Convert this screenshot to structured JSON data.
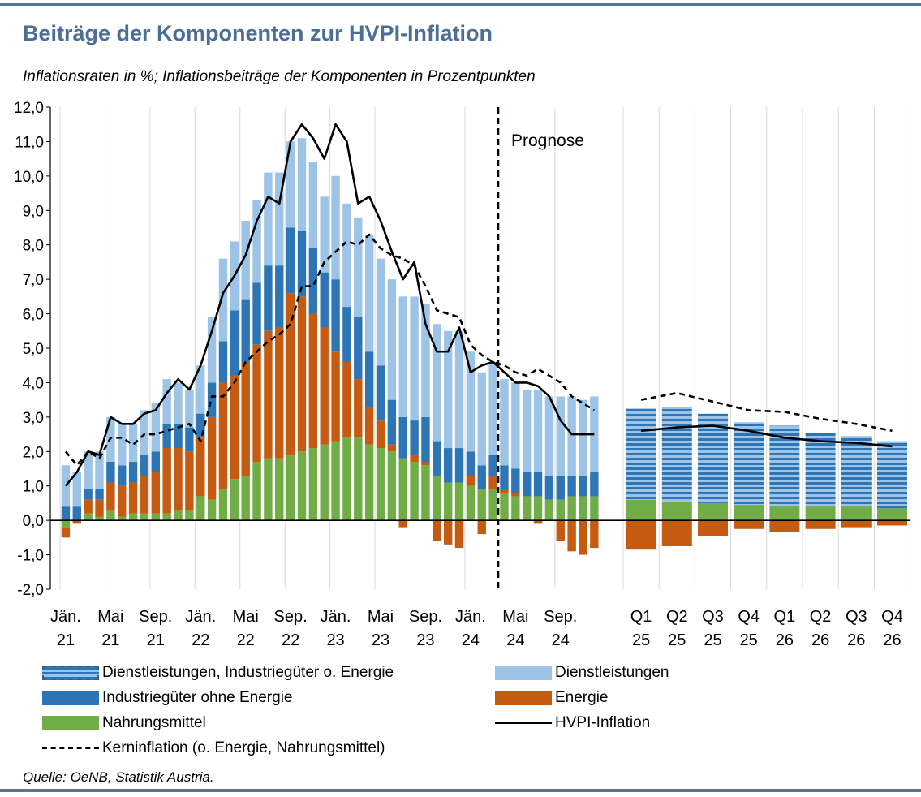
{
  "title": "Beiträge der Komponenten zur HVPI-Inflation",
  "subtitle": "Inflationsraten in %; Inflationsbeiträge der Komponenten in Prozentpunkten",
  "source": "Quelle: OeNB, Statistik Austria.",
  "colors": {
    "services": "#9dc3e6",
    "industrial": "#2e75b6",
    "energy": "#c55a11",
    "food": "#70ad47",
    "combined_stripe_light": "#9dc3e6",
    "combined_stripe_dark": "#2e75b6",
    "hvpi": "#000000",
    "core": "#000000",
    "rule": "#5b7596",
    "title": "#4d6e96"
  },
  "chart_data": {
    "type": "bar",
    "stacked": true,
    "ylim": [
      -2.0,
      12.0
    ],
    "y_ticks": [
      "12,0",
      "11,0",
      "10,0",
      "9,0",
      "8,0",
      "7,0",
      "6,0",
      "5,0",
      "4,0",
      "3,0",
      "2,0",
      "1,0",
      "0,0",
      "-1,0",
      "-2,0"
    ],
    "grid": "vertical",
    "annotation": "Prognose",
    "monthly": {
      "categories": [
        "2021-01",
        "2021-02",
        "2021-03",
        "2021-04",
        "2021-05",
        "2021-06",
        "2021-07",
        "2021-08",
        "2021-09",
        "2021-10",
        "2021-11",
        "2021-12",
        "2022-01",
        "2022-02",
        "2022-03",
        "2022-04",
        "2022-05",
        "2022-06",
        "2022-07",
        "2022-08",
        "2022-09",
        "2022-10",
        "2022-11",
        "2022-12",
        "2023-01",
        "2023-02",
        "2023-03",
        "2023-04",
        "2023-05",
        "2023-06",
        "2023-07",
        "2023-08",
        "2023-09",
        "2023-10",
        "2023-11",
        "2023-12",
        "2024-01",
        "2024-02",
        "2024-03",
        "2024-04",
        "2024-05",
        "2024-06",
        "2024-07",
        "2024-08",
        "2024-09",
        "2024-10",
        "2024-11",
        "2024-12"
      ],
      "tick_labels": [
        {
          "line1": "Jän.",
          "line2": "21"
        },
        {
          "line1": "Mai",
          "line2": "21"
        },
        {
          "line1": "Sep.",
          "line2": "21"
        },
        {
          "line1": "Jän.",
          "line2": "22"
        },
        {
          "line1": "Mai",
          "line2": "22"
        },
        {
          "line1": "Sep.",
          "line2": "22"
        },
        {
          "line1": "Jän.",
          "line2": "23"
        },
        {
          "line1": "Mai",
          "line2": "23"
        },
        {
          "line1": "Sep.",
          "line2": "23"
        },
        {
          "line1": "Jän.",
          "line2": "24"
        },
        {
          "line1": "Mai",
          "line2": "24"
        },
        {
          "line1": "Sep.",
          "line2": "24"
        }
      ],
      "series": [
        {
          "name": "Nahrungsmittel",
          "values": [
            -0.2,
            0.0,
            0.2,
            0.1,
            0.3,
            0.1,
            0.2,
            0.2,
            0.2,
            0.2,
            0.3,
            0.3,
            0.7,
            0.6,
            0.9,
            1.2,
            1.3,
            1.7,
            1.8,
            1.8,
            1.9,
            2.0,
            2.1,
            2.2,
            2.3,
            2.4,
            2.4,
            2.2,
            2.1,
            2.0,
            1.8,
            1.7,
            1.6,
            1.3,
            1.1,
            1.1,
            1.0,
            0.9,
            0.9,
            0.8,
            0.7,
            0.7,
            0.7,
            0.6,
            0.6,
            0.7,
            0.7,
            0.7
          ]
        },
        {
          "name": "Energie",
          "values": [
            -0.3,
            -0.1,
            0.4,
            0.5,
            0.8,
            0.9,
            0.9,
            1.1,
            1.2,
            1.9,
            1.8,
            1.7,
            1.7,
            2.4,
            3.1,
            3.0,
            3.3,
            3.4,
            3.7,
            3.8,
            4.7,
            4.5,
            3.9,
            3.4,
            2.6,
            2.2,
            1.7,
            1.1,
            0.8,
            0.2,
            -0.2,
            0.2,
            0.1,
            -0.6,
            -0.7,
            -0.8,
            0.3,
            -0.4,
            0.4,
            0.1,
            0.1,
            0.0,
            -0.1,
            0.0,
            -0.6,
            -0.9,
            -1.0,
            -0.8
          ]
        },
        {
          "name": "Industriegüter ohne Energie",
          "values": [
            0.4,
            0.4,
            0.3,
            0.3,
            0.6,
            0.6,
            0.6,
            0.6,
            0.6,
            0.7,
            0.7,
            0.7,
            0.7,
            1.0,
            1.2,
            1.9,
            1.8,
            1.8,
            1.9,
            1.8,
            1.9,
            1.9,
            1.9,
            1.6,
            2.1,
            1.6,
            1.8,
            1.6,
            1.6,
            1.3,
            1.2,
            1.0,
            1.3,
            1.0,
            1.0,
            1.0,
            0.7,
            0.7,
            0.6,
            0.7,
            0.7,
            0.7,
            0.7,
            0.7,
            0.7,
            0.6,
            0.6,
            0.7
          ]
        },
        {
          "name": "Dienstleistungen",
          "values": [
            1.2,
            1.0,
            1.1,
            1.1,
            1.3,
            1.2,
            1.1,
            1.3,
            1.4,
            1.3,
            1.2,
            1.1,
            1.4,
            1.9,
            2.4,
            2.0,
            2.3,
            2.4,
            2.7,
            2.7,
            2.5,
            2.7,
            2.5,
            2.2,
            3.0,
            3.0,
            2.9,
            3.4,
            3.1,
            3.5,
            3.5,
            3.6,
            3.3,
            3.4,
            3.4,
            3.4,
            2.9,
            2.7,
            2.7,
            2.5,
            2.5,
            2.4,
            2.4,
            2.3,
            2.3,
            2.3,
            2.2,
            2.2
          ]
        },
        {
          "name": "HVPI-Inflation",
          "type": "line",
          "values": [
            1.0,
            1.4,
            2.0,
            1.9,
            3.0,
            2.8,
            2.8,
            3.1,
            3.2,
            3.7,
            4.1,
            3.8,
            4.5,
            5.5,
            6.6,
            7.1,
            7.7,
            8.7,
            9.4,
            9.2,
            11.0,
            11.5,
            11.1,
            10.5,
            11.5,
            11.0,
            9.2,
            9.4,
            8.7,
            7.8,
            7.0,
            7.5,
            5.7,
            4.9,
            4.9,
            5.6,
            4.3,
            4.5,
            4.6,
            4.3,
            4.0,
            4.0,
            3.9,
            3.6,
            2.9,
            2.5,
            2.5,
            2.5
          ]
        },
        {
          "name": "Kerninflation (o. Energie, Nahrungsmittel)",
          "type": "line",
          "values": [
            2.0,
            1.6,
            2.0,
            1.8,
            2.4,
            2.4,
            2.2,
            2.5,
            2.5,
            2.6,
            2.7,
            2.8,
            2.3,
            3.6,
            3.6,
            4.0,
            4.6,
            4.9,
            5.2,
            5.4,
            5.7,
            6.8,
            6.8,
            7.5,
            7.8,
            8.1,
            8.0,
            8.3,
            7.9,
            7.7,
            7.6,
            7.4,
            6.8,
            6.1,
            6.0,
            5.9,
            5.1,
            4.8,
            4.6,
            4.5,
            4.3,
            4.2,
            4.4,
            4.2,
            4.0,
            3.6,
            3.4,
            3.2
          ]
        }
      ]
    },
    "forecast": {
      "categories": [
        {
          "line1": "Q1",
          "line2": "25"
        },
        {
          "line1": "Q2",
          "line2": "25"
        },
        {
          "line1": "Q3",
          "line2": "25"
        },
        {
          "line1": "Q4",
          "line2": "25"
        },
        {
          "line1": "Q1",
          "line2": "26"
        },
        {
          "line1": "Q2",
          "line2": "26"
        },
        {
          "line1": "Q3",
          "line2": "26"
        },
        {
          "line1": "Q4",
          "line2": "26"
        }
      ],
      "series": [
        {
          "name": "Nahrungsmittel",
          "values": [
            0.6,
            0.55,
            0.5,
            0.45,
            0.4,
            0.4,
            0.4,
            0.35
          ]
        },
        {
          "name": "Energie",
          "values": [
            -0.85,
            -0.75,
            -0.45,
            -0.25,
            -0.35,
            -0.25,
            -0.2,
            -0.15
          ]
        },
        {
          "name": "Dienstleistungen, Industriegüter o. Energie",
          "values": [
            2.65,
            2.75,
            2.6,
            2.4,
            2.35,
            2.15,
            2.05,
            1.95
          ]
        },
        {
          "name": "HVPI-Inflation",
          "type": "line",
          "values": [
            2.6,
            2.7,
            2.75,
            2.6,
            2.4,
            2.3,
            2.25,
            2.15
          ]
        },
        {
          "name": "Kerninflation (o. Energie, Nahrungsmittel)",
          "type": "line",
          "values": [
            3.5,
            3.7,
            3.45,
            3.2,
            3.15,
            2.95,
            2.8,
            2.6
          ]
        }
      ]
    },
    "legend": [
      {
        "name": "Dienstleistungen, Industriegüter o. Energie",
        "style": "striped"
      },
      {
        "name": "Dienstleistungen",
        "style": "fill"
      },
      {
        "name": "Industriegüter ohne Energie",
        "style": "fill"
      },
      {
        "name": "Energie",
        "style": "fill"
      },
      {
        "name": "Nahrungsmittel",
        "style": "fill"
      },
      {
        "name": "HVPI-Inflation",
        "style": "solid-line"
      },
      {
        "name": "Kerninflation (o. Energie, Nahrungsmittel)",
        "style": "dashed-line"
      }
    ]
  }
}
